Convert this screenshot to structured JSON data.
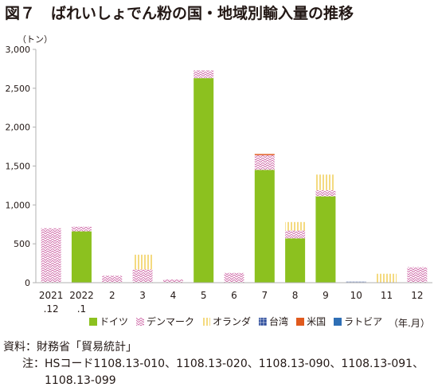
{
  "figure": {
    "number": "図７",
    "title": "ばれいしょでん粉の国・地域別輸入量の推移"
  },
  "colors": {
    "germany": "#8cc11f",
    "denmark": "#d06aa8",
    "netherlands": "#e9b400",
    "taiwan": "#2a4a9b",
    "usa": "#e05a1e",
    "latvia": "#2f6fb5",
    "axis": "#b0b0b0"
  },
  "chart_data": {
    "type": "bar",
    "stacked": true,
    "y_unit_label": "（トン）",
    "x_unit_label": "（年.月）",
    "ylim": [
      0,
      3000
    ],
    "y_ticks": [
      "0",
      "500",
      "1,000",
      "1,500",
      "2,000",
      "2,500",
      "3,000"
    ],
    "categories": [
      [
        "2021",
        ".12"
      ],
      [
        "2022",
        ".1"
      ],
      [
        "2"
      ],
      [
        "3"
      ],
      [
        "4"
      ],
      [
        "5"
      ],
      [
        "6"
      ],
      [
        "7"
      ],
      [
        "8"
      ],
      [
        "9"
      ],
      [
        "10"
      ],
      [
        "11"
      ],
      [
        "12"
      ]
    ],
    "series": [
      {
        "name": "ドイツ",
        "key": "germany",
        "values": [
          0,
          660,
          0,
          0,
          0,
          2630,
          0,
          1450,
          570,
          1110,
          0,
          0,
          0
        ]
      },
      {
        "name": "デンマーク",
        "key": "denmark",
        "values": [
          700,
          60,
          90,
          170,
          40,
          100,
          125,
          190,
          100,
          80,
          0,
          0,
          200
        ]
      },
      {
        "name": "オランダ",
        "key": "netherlands",
        "values": [
          0,
          0,
          0,
          190,
          0,
          0,
          0,
          0,
          110,
          200,
          0,
          115,
          0
        ]
      },
      {
        "name": "台湾",
        "key": "taiwan",
        "values": [
          0,
          0,
          0,
          0,
          0,
          0,
          0,
          0,
          0,
          0,
          15,
          0,
          0
        ]
      },
      {
        "name": "米国",
        "key": "usa",
        "values": [
          0,
          0,
          0,
          0,
          0,
          0,
          0,
          15,
          0,
          0,
          0,
          0,
          0
        ]
      },
      {
        "name": "ラトビア",
        "key": "latvia",
        "values": [
          0,
          0,
          0,
          0,
          0,
          0,
          0,
          0,
          0,
          0,
          0,
          0,
          0
        ]
      }
    ],
    "grid": false,
    "legend_position": "bottom"
  },
  "notes": {
    "source_label": "資料：",
    "source_text": "財務省「貿易統計」",
    "note_label": "注：",
    "note_line1": "HSコード1108.13-010、1108.13-020、1108.13-090、1108.13-091、",
    "note_line2": "1108.13-099"
  }
}
